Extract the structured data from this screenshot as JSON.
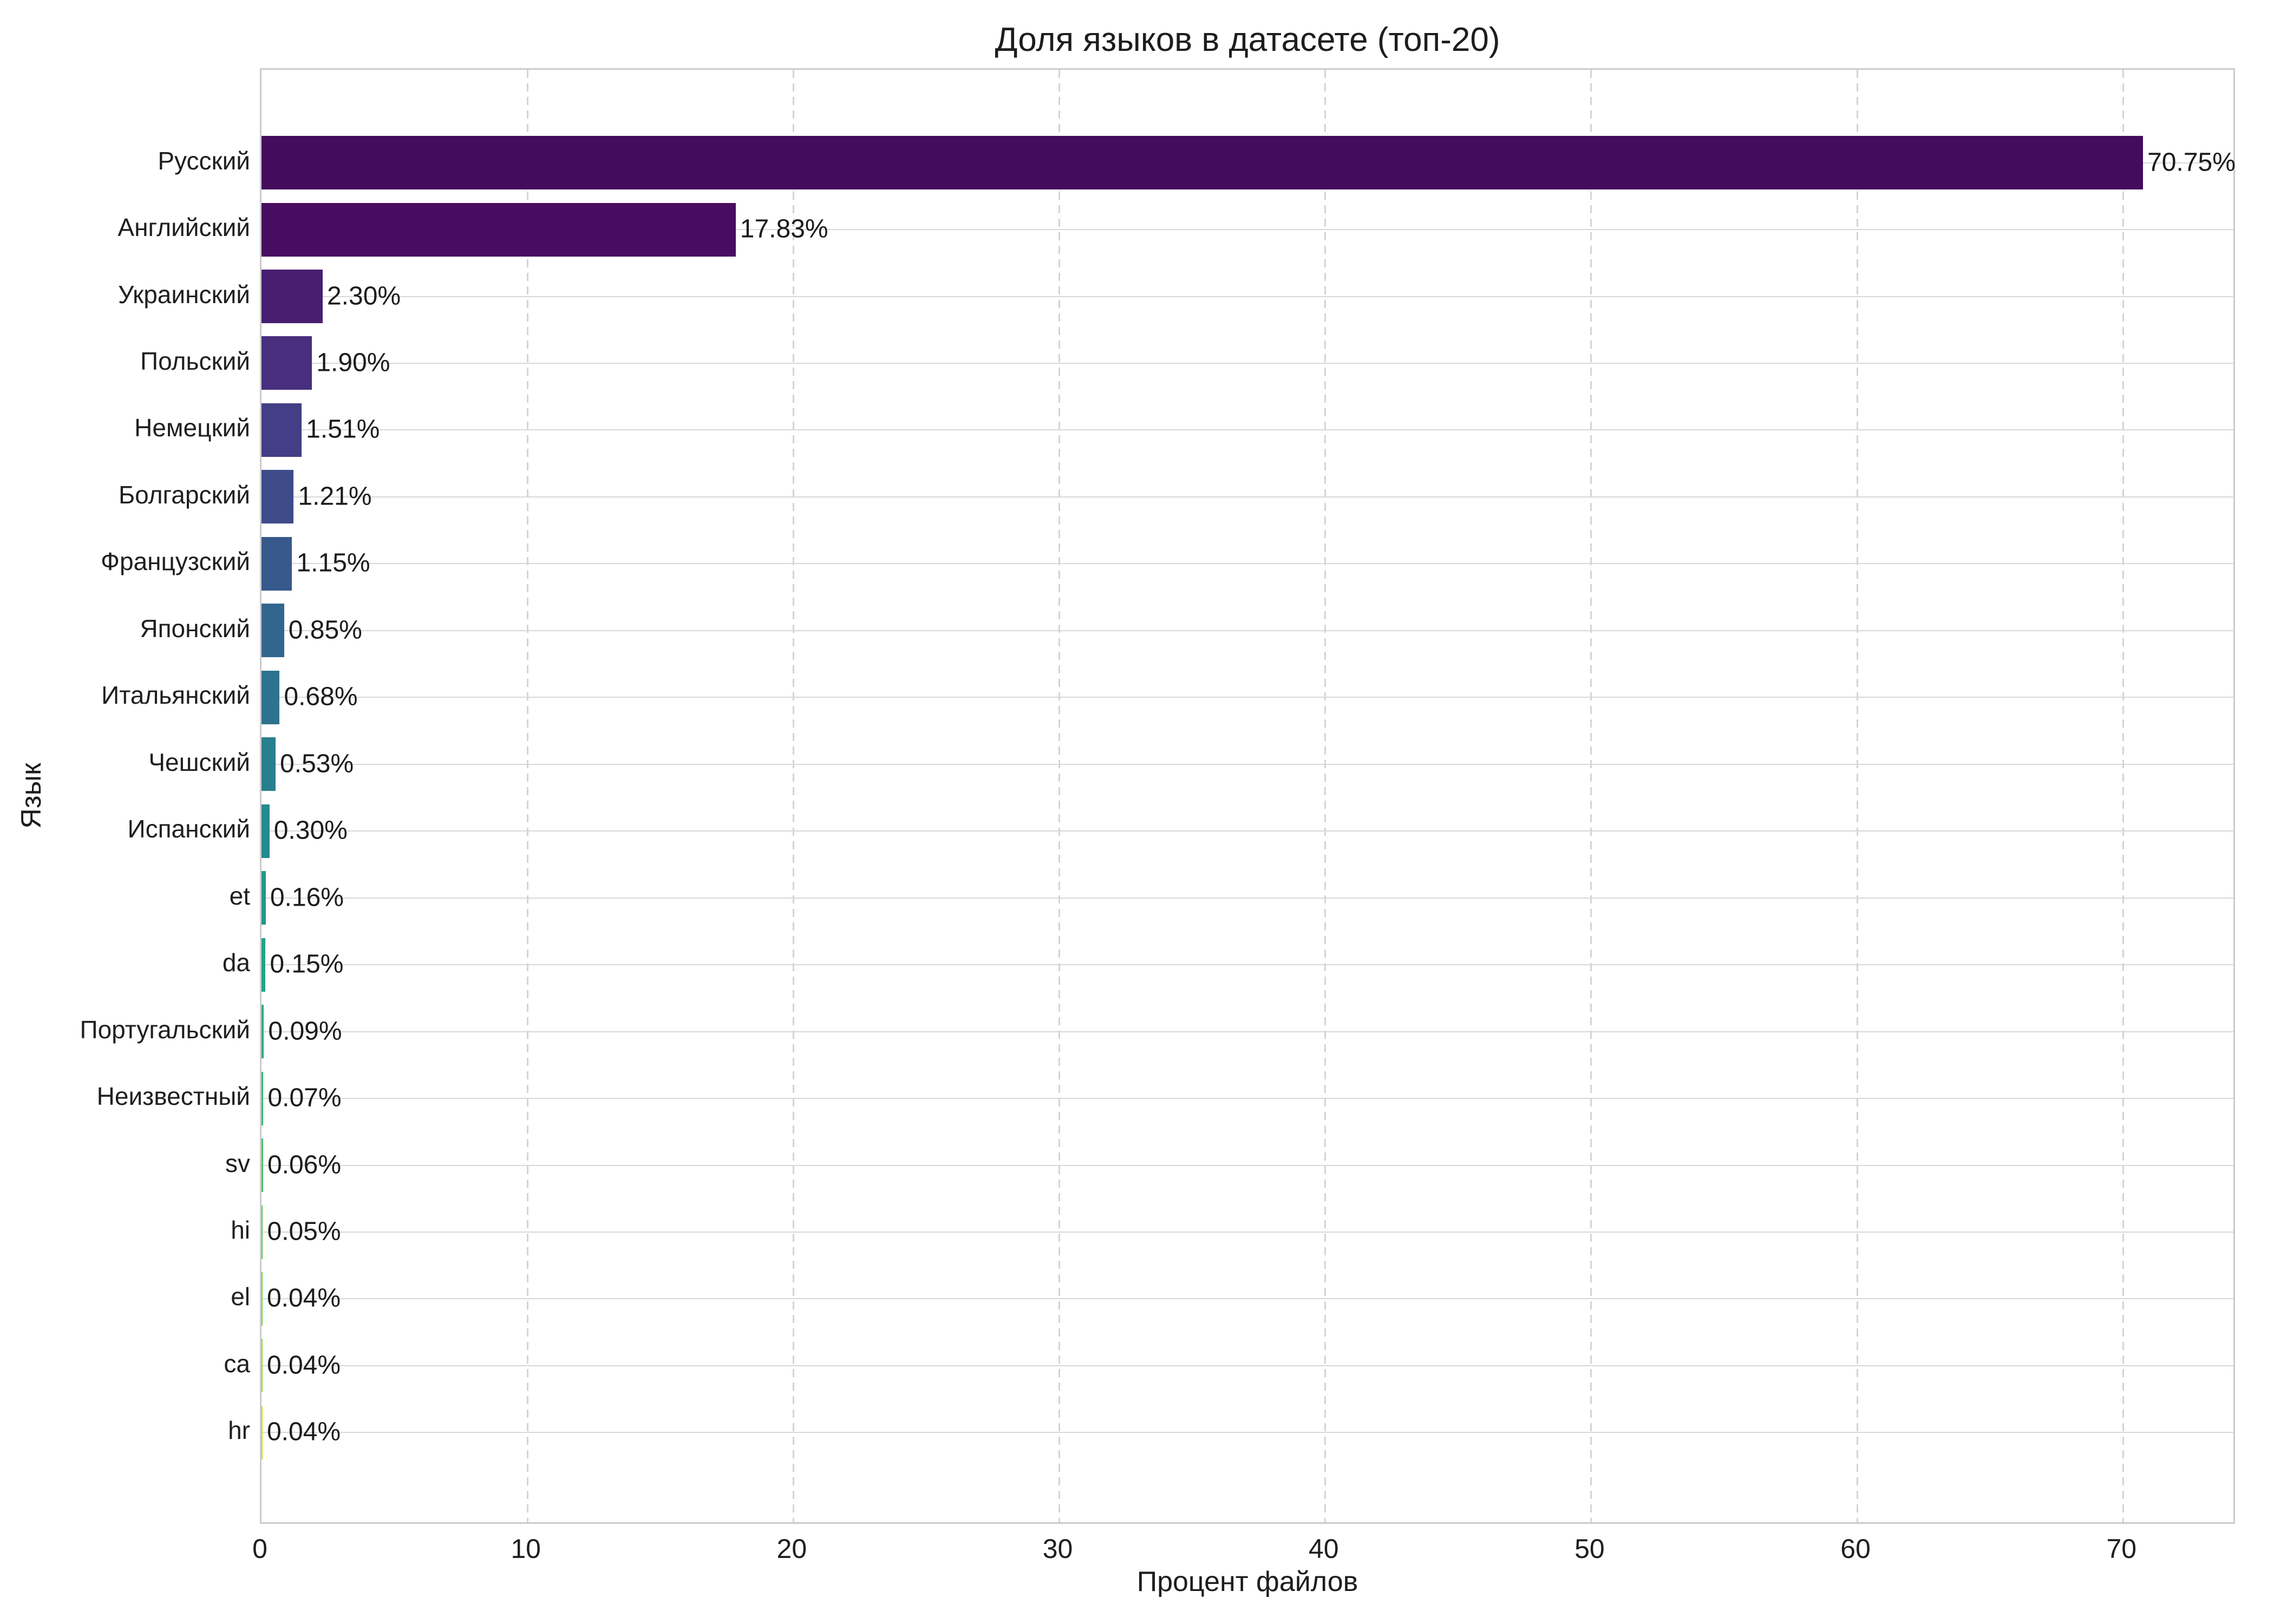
{
  "chart_data": {
    "type": "bar",
    "orientation": "horizontal",
    "title": "Доля языков в датасете (топ-20)",
    "xlabel": "Процент файлов",
    "ylabel": "Язык",
    "xlim": [
      0,
      74.27
    ],
    "x_ticks": [
      0,
      10,
      20,
      30,
      40,
      50,
      60,
      70
    ],
    "grid": {
      "vertical": "dashed",
      "horizontal": "solid"
    },
    "legend": "none",
    "palette": "viridis",
    "categories": [
      "Русский",
      "Английский",
      "Украинский",
      "Польский",
      "Немецкий",
      "Болгарский",
      "Французский",
      "Японский",
      "Итальянский",
      "Чешский",
      "Испанский",
      "et",
      "da",
      "Португальский",
      "Неизвестный",
      "sv",
      "hi",
      "el",
      "ca",
      "hr"
    ],
    "values": [
      70.75,
      17.83,
      2.3,
      1.9,
      1.51,
      1.21,
      1.15,
      0.85,
      0.68,
      0.53,
      0.3,
      0.16,
      0.15,
      0.09,
      0.07,
      0.06,
      0.05,
      0.04,
      0.04,
      0.04
    ],
    "value_labels": [
      "70.75%",
      "17.83%",
      "2.30%",
      "1.90%",
      "1.51%",
      "1.21%",
      "1.15%",
      "0.85%",
      "0.68%",
      "0.53%",
      "0.30%",
      "0.16%",
      "0.15%",
      "0.09%",
      "0.07%",
      "0.06%",
      "0.05%",
      "0.04%",
      "0.04%",
      "0.04%"
    ],
    "bar_colors": [
      "#440c5c",
      "#470d60",
      "#481f70",
      "#472f7d",
      "#433e85",
      "#3e4c8a",
      "#38598c",
      "#33668d",
      "#2e738e",
      "#2a7f8e",
      "#258b8d",
      "#22978b",
      "#22a385",
      "#29af7f",
      "#36ba76",
      "#48c46b",
      "#5ec962",
      "#7ad151",
      "#9bd93c",
      "#c8e020"
    ]
  }
}
